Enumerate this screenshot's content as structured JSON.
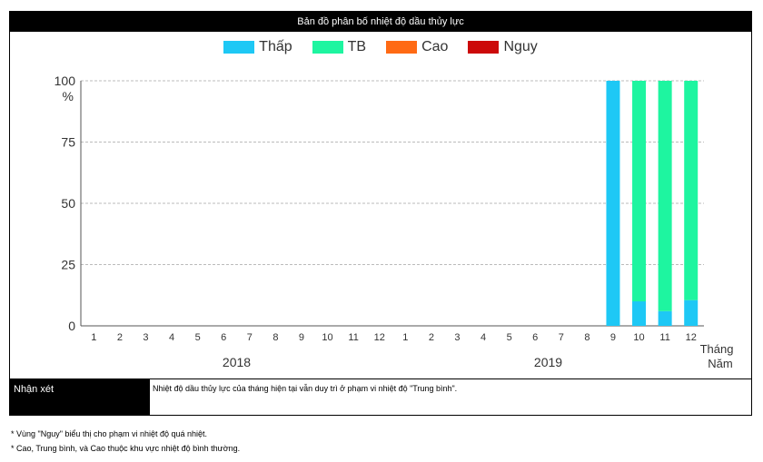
{
  "title": "Bản đồ phân bố nhiệt độ dầu thủy lực",
  "comment": {
    "label": "Nhận xét",
    "text": "Nhiệt độ dầu thủy lực của tháng hiện tại vẫn duy trì ở phạm vi nhiệt độ \"Trung bình\"."
  },
  "notes": [
    "* Vùng \"Nguy\" biểu thị cho phạm vi nhiệt độ quá nhiệt.",
    "* Cao, Trung bình, và Cao thuộc khu vực nhiệt độ bình thường."
  ],
  "chart_data": {
    "type": "bar",
    "stacked": true,
    "ylabel": "%",
    "xlabel_month": "Tháng",
    "xlabel_year": "Năm",
    "ylim": [
      0,
      100
    ],
    "yticks": [
      0,
      25,
      50,
      75,
      100
    ],
    "grid": true,
    "legend_position": "top-center",
    "categories": [
      "1",
      "2",
      "3",
      "4",
      "5",
      "6",
      "7",
      "8",
      "9",
      "10",
      "11",
      "12",
      "1",
      "2",
      "3",
      "4",
      "5",
      "6",
      "7",
      "8",
      "9",
      "10",
      "11",
      "12"
    ],
    "year_groups": [
      {
        "label": "2018",
        "start": 0,
        "end": 11
      },
      {
        "label": "2019",
        "start": 12,
        "end": 23
      }
    ],
    "series": [
      {
        "name": "Thấp",
        "color": "#1ec8f5",
        "values": [
          0,
          0,
          0,
          0,
          0,
          0,
          0,
          0,
          0,
          0,
          0,
          0,
          0,
          0,
          0,
          0,
          0,
          0,
          0,
          0,
          100,
          10,
          6,
          10.5
        ]
      },
      {
        "name": "TB",
        "color": "#1ef5a0",
        "values": [
          0,
          0,
          0,
          0,
          0,
          0,
          0,
          0,
          0,
          0,
          0,
          0,
          0,
          0,
          0,
          0,
          0,
          0,
          0,
          0,
          0,
          90,
          94,
          89.5
        ]
      },
      {
        "name": "Cao",
        "color": "#ff6a14",
        "values": [
          0,
          0,
          0,
          0,
          0,
          0,
          0,
          0,
          0,
          0,
          0,
          0,
          0,
          0,
          0,
          0,
          0,
          0,
          0,
          0,
          0,
          0,
          0,
          0
        ]
      },
      {
        "name": "Nguy",
        "color": "#cc0a0a",
        "values": [
          0,
          0,
          0,
          0,
          0,
          0,
          0,
          0,
          0,
          0,
          0,
          0,
          0,
          0,
          0,
          0,
          0,
          0,
          0,
          0,
          0,
          0,
          0,
          0
        ]
      }
    ]
  }
}
